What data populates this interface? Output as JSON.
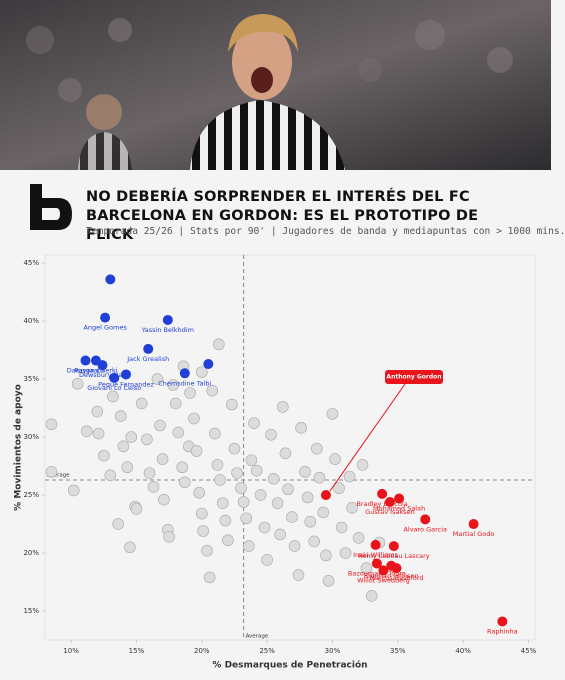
{
  "chart_data": {
    "type": "scatter",
    "title": "NO DEBERÍA SORPRENDER EL INTERÉS DEL FC BARCELONA EN GORDON: ES EL PROTOTIPO DE FLICK",
    "subtitle": "Temporada 25/26 | Stats por 90' | Jugadores de banda y mediapuntas con > 1000 mins.",
    "x_label": "% Desmarques de Penetración",
    "y_label": "% Movimientos de apoyo",
    "xlim": [
      8,
      45.5
    ],
    "ylim": [
      12.5,
      45.7
    ],
    "xticks": [
      {
        "value": 10,
        "label": "10%"
      },
      {
        "value": 15,
        "label": "15%"
      },
      {
        "value": 20,
        "label": "20%"
      },
      {
        "value": 25,
        "label": "25%"
      },
      {
        "value": 30,
        "label": "30%"
      },
      {
        "value": 35,
        "label": "35%"
      },
      {
        "value": 40,
        "label": "40%"
      },
      {
        "value": 45,
        "label": "45%"
      }
    ],
    "yticks": [
      {
        "value": 15,
        "label": "15%"
      },
      {
        "value": 20,
        "label": "20%"
      },
      {
        "value": 25,
        "label": "25%"
      },
      {
        "value": 30,
        "label": "30%"
      },
      {
        "value": 35,
        "label": "35%"
      },
      {
        "value": 40,
        "label": "40%"
      },
      {
        "value": 45,
        "label": "45%"
      }
    ],
    "averages": {
      "x": 23.2,
      "y": 26.3,
      "label": "Average"
    },
    "series": [
      {
        "color": "#dcdcdc",
        "x": [
          8.5,
          8.5,
          10.2,
          10.5,
          11.2,
          12.0,
          12.5,
          13.0,
          13.2,
          13.8,
          14.0,
          14.3,
          14.6,
          14.9,
          15.0,
          15.4,
          15.8,
          16.0,
          16.3,
          16.8,
          17.0,
          17.1,
          17.4,
          17.5,
          17.8,
          18.0,
          18.2,
          18.5,
          18.7,
          19.0,
          19.1,
          19.4,
          19.6,
          19.8,
          20.0,
          20.1,
          20.4,
          20.6,
          20.8,
          21.0,
          21.2,
          21.4,
          21.6,
          21.8,
          22.0,
          22.3,
          22.5,
          22.7,
          23.0,
          23.2,
          23.4,
          23.6,
          23.8,
          24.0,
          24.2,
          24.5,
          24.8,
          25.0,
          25.3,
          25.5,
          25.8,
          26.0,
          26.2,
          26.4,
          26.6,
          26.9,
          27.1,
          27.4,
          27.6,
          27.9,
          28.1,
          28.3,
          28.6,
          28.8,
          29.0,
          29.3,
          29.5,
          29.7,
          30.0,
          30.2,
          30.5,
          30.7,
          31.0,
          31.3,
          31.5,
          32.0,
          32.3,
          32.6,
          33.0,
          33.6,
          21.3,
          18.6,
          20.0,
          16.6,
          12.1,
          14.5,
          13.6
        ],
        "values": [
          27.0,
          31.1,
          25.4,
          34.6,
          30.5,
          32.2,
          28.4,
          26.7,
          33.5,
          31.8,
          29.2,
          27.4,
          30.0,
          24.0,
          23.8,
          32.9,
          29.8,
          26.9,
          25.7,
          31.0,
          28.1,
          24.6,
          22.0,
          21.4,
          34.5,
          32.9,
          30.4,
          27.4,
          26.1,
          29.2,
          33.8,
          31.6,
          28.8,
          25.2,
          23.4,
          21.9,
          20.2,
          17.9,
          34.0,
          30.3,
          27.6,
          26.3,
          24.3,
          22.8,
          21.1,
          32.8,
          29.0,
          26.9,
          25.6,
          24.4,
          23.0,
          20.6,
          28.0,
          31.2,
          27.1,
          25.0,
          22.2,
          19.4,
          30.2,
          26.4,
          24.3,
          21.6,
          32.6,
          28.6,
          25.5,
          23.1,
          20.6,
          18.1,
          30.8,
          27.0,
          24.8,
          22.7,
          21.0,
          29.0,
          26.5,
          23.5,
          19.8,
          17.6,
          32.0,
          28.1,
          25.6,
          22.2,
          20.0,
          26.6,
          23.9,
          21.3,
          27.6,
          18.7,
          16.3,
          20.9,
          38.0,
          36.1,
          35.6,
          35.0,
          30.3,
          20.5,
          22.5
        ]
      },
      {
        "color": "#1f3fd6",
        "x": [
          13.0,
          12.6,
          17.4,
          11.1,
          11.9,
          12.4,
          13.3,
          14.2,
          15.9,
          18.7,
          20.5
        ],
        "values": [
          43.6,
          40.3,
          40.1,
          36.6,
          36.6,
          36.2,
          35.1,
          35.4,
          37.6,
          35.5,
          36.3
        ],
        "labels": [
          null,
          "Angel Gomes",
          "Yassin Belkhdim",
          "Damsgaard",
          "Rayan Cherki",
          "Dewsbury Hall",
          "Giovani Lo Celso",
          "Peque Fernandez",
          "Jack Grealish",
          "Chemsdine Talbi",
          null
        ]
      },
      {
        "color": "#e8141b",
        "x": [
          29.5,
          33.8,
          35.1,
          34.4,
          37.1,
          40.8,
          34.7,
          33.3,
          33.4,
          34.5,
          33.9,
          34.9,
          43.0
        ],
        "values": [
          25.0,
          25.1,
          24.7,
          24.4,
          22.9,
          22.5,
          20.6,
          20.7,
          19.1,
          18.9,
          18.5,
          18.7,
          14.1
        ],
        "labels": [
          null,
          "Bradley Barcola",
          "Mohamed Salah",
          "Gustav Isaksen",
          "Alvaro Garcia",
          "Martial Godo",
          "Remy Labeau Lascary",
          "Inaki Williams",
          "Bazoumana Toure",
          "Brennan Johnson",
          "Willot Swedberg",
          "Marcus Rashford",
          "Raphinha"
        ]
      }
    ],
    "annotations": [
      {
        "text": "Anthony Gordon",
        "x": 29.5,
        "y": 25.0
      }
    ]
  }
}
